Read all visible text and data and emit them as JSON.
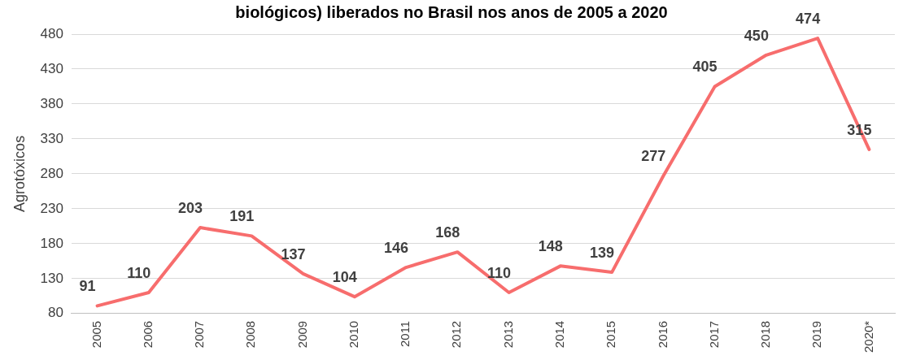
{
  "chart_data": {
    "type": "line",
    "title": "biológicos) liberados no Brasil nos anos de 2005 a 2020",
    "ylabel": "Agrotóxicos",
    "categories": [
      "2005",
      "2006",
      "2007",
      "2008",
      "2009",
      "2010",
      "2011",
      "2012",
      "2013",
      "2014",
      "2015",
      "2016",
      "2017",
      "2018",
      "2019",
      "2020*"
    ],
    "series": [
      {
        "color": "#f76d6d",
        "values": [
          91,
          110,
          203,
          191,
          137,
          104,
          146,
          168,
          110,
          148,
          139,
          277,
          405,
          450,
          474,
          315
        ]
      }
    ],
    "ylim": [
      80,
      480
    ],
    "yticks": [
      80,
      130,
      180,
      230,
      280,
      330,
      380,
      430,
      480
    ],
    "grid": "y",
    "legend": false,
    "marker": "none",
    "line_style": "solid",
    "data_labels": true
  }
}
